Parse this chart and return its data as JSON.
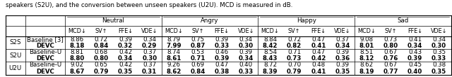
{
  "caption": "speakers (S2U), and the conversion between unseen speakers (U2U). MCD is measured in dB.",
  "emotions": [
    "Neutral",
    "Angry",
    "Happy",
    "Sad"
  ],
  "metrics": [
    "MCD↓",
    "SV↑",
    "FFE↓",
    "VDE↓"
  ],
  "row_groups": [
    "S2S",
    "S2U",
    "U2U"
  ],
  "row_labels": [
    [
      "Baseline [3]",
      "DEVC"
    ],
    [
      "Baseline-U",
      "DEVC"
    ],
    [
      "Baseline-U",
      "DEVC"
    ]
  ],
  "data": [
    [
      [
        8.86,
        0.72,
        0.39,
        0.34,
        8.79,
        0.75,
        0.39,
        0.34,
        8.84,
        0.72,
        0.47,
        0.37,
        9.08,
        0.73,
        0.41,
        0.34
      ],
      [
        8.18,
        0.84,
        0.32,
        0.29,
        7.99,
        0.87,
        0.33,
        0.3,
        8.42,
        0.82,
        0.41,
        0.34,
        8.01,
        0.8,
        0.34,
        0.3
      ]
    ],
    [
      [
        8.81,
        0.68,
        0.42,
        0.37,
        8.74,
        0.53,
        0.46,
        0.39,
        8.54,
        0.71,
        0.47,
        0.39,
        8.51,
        0.67,
        0.43,
        0.35
      ],
      [
        8.8,
        0.8,
        0.34,
        0.3,
        8.61,
        0.71,
        0.39,
        0.34,
        8.43,
        0.73,
        0.42,
        0.36,
        8.12,
        0.76,
        0.39,
        0.33
      ]
    ],
    [
      [
        9.02,
        0.65,
        0.42,
        0.37,
        9.26,
        0.69,
        0.47,
        0.4,
        8.72,
        0.7,
        0.48,
        0.39,
        8.62,
        0.67,
        0.45,
        0.38
      ],
      [
        8.67,
        0.79,
        0.35,
        0.31,
        8.62,
        0.84,
        0.38,
        0.33,
        8.39,
        0.79,
        0.41,
        0.35,
        8.19,
        0.77,
        0.4,
        0.35
      ]
    ]
  ],
  "font_size": 6.2,
  "bg_color": "#ffffff",
  "line_color": "#000000"
}
